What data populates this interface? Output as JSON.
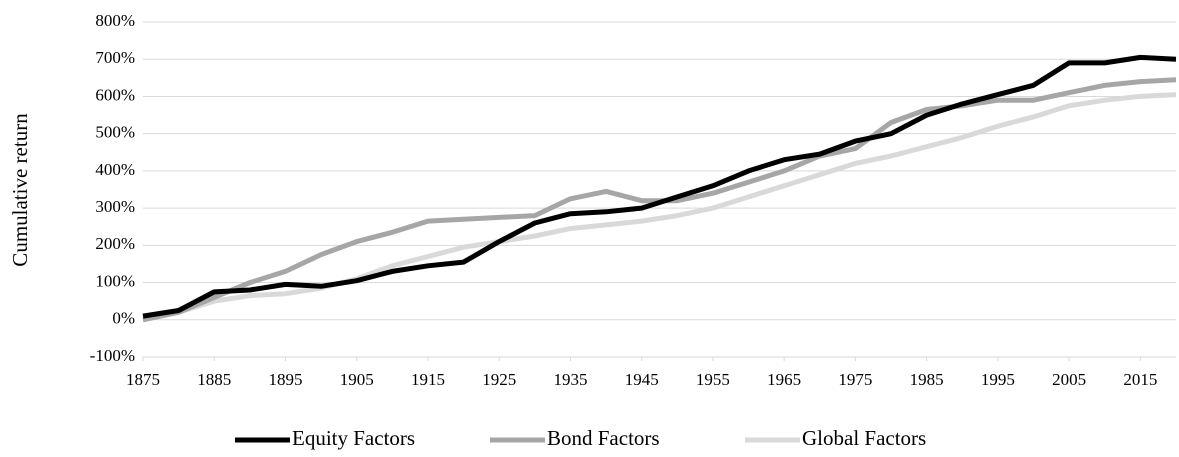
{
  "chart_data": {
    "type": "line",
    "y_label": "Cumulative return",
    "x": [
      1875,
      1880,
      1885,
      1890,
      1895,
      1900,
      1905,
      1910,
      1915,
      1920,
      1925,
      1930,
      1935,
      1940,
      1945,
      1950,
      1955,
      1960,
      1965,
      1970,
      1975,
      1980,
      1985,
      1990,
      1995,
      2000,
      2005,
      2010,
      2015,
      2020
    ],
    "series": [
      {
        "name": "Equity Factors",
        "color": "#000000",
        "values": [
          10,
          25,
          75,
          80,
          95,
          90,
          105,
          130,
          145,
          155,
          210,
          260,
          285,
          290,
          300,
          330,
          360,
          400,
          430,
          445,
          480,
          500,
          550,
          580,
          605,
          630,
          690,
          690,
          705,
          700
        ]
      },
      {
        "name": "Bond Factors",
        "color": "#a6a6a6",
        "values": [
          0,
          20,
          60,
          100,
          130,
          175,
          210,
          235,
          265,
          270,
          275,
          280,
          325,
          345,
          320,
          320,
          340,
          370,
          400,
          440,
          460,
          530,
          565,
          575,
          590,
          590,
          610,
          630,
          640,
          645
        ]
      },
      {
        "name": "Global Factors",
        "color": "#d9d9d9",
        "values": [
          0,
          20,
          50,
          65,
          70,
          85,
          110,
          145,
          170,
          195,
          210,
          225,
          245,
          255,
          265,
          280,
          300,
          330,
          360,
          390,
          420,
          440,
          465,
          490,
          520,
          545,
          575,
          590,
          600,
          605
        ]
      }
    ],
    "xlim": [
      1875,
      2020
    ],
    "xticks": [
      1875,
      1885,
      1895,
      1905,
      1915,
      1925,
      1935,
      1945,
      1955,
      1965,
      1975,
      1985,
      1995,
      2005,
      2015
    ],
    "ylim": [
      -100,
      800
    ],
    "yticks": [
      {
        "value": -100,
        "label": "-100%"
      },
      {
        "value": 0,
        "label": "0%"
      },
      {
        "value": 100,
        "label": "100%"
      },
      {
        "value": 200,
        "label": "200%"
      },
      {
        "value": 300,
        "label": "300%"
      },
      {
        "value": 400,
        "label": "400%"
      },
      {
        "value": 500,
        "label": "500%"
      },
      {
        "value": 600,
        "label": "600%"
      },
      {
        "value": 700,
        "label": "700%"
      },
      {
        "value": 800,
        "label": "800%"
      }
    ],
    "grid": true,
    "legend": "bottom"
  }
}
